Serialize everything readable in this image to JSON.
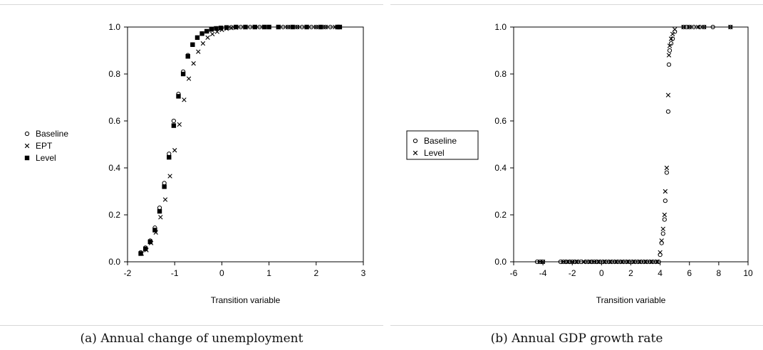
{
  "chart_data": [
    {
      "type": "scatter",
      "caption": "(a) Annual change of unemployment",
      "xlabel": "Transition variable",
      "ylabel": "",
      "xlim": [
        -2,
        3
      ],
      "ylim": [
        0,
        1
      ],
      "xticks": [
        "-2",
        "-1",
        "0",
        "1",
        "2",
        "3"
      ],
      "yticks": [
        "0.0",
        "0.2",
        "0.4",
        "0.6",
        "0.8",
        "1.0"
      ],
      "legend_position": "left",
      "series": [
        {
          "name": "Baseline",
          "marker": "circle",
          "x": [
            -1.72,
            -1.62,
            -1.52,
            -1.42,
            -1.32,
            -1.22,
            -1.12,
            -1.02,
            -0.92,
            -0.82,
            -0.72,
            -0.62,
            -0.52,
            -0.42,
            -0.32,
            -0.22,
            -0.12,
            -0.02,
            0.1,
            0.2,
            0.3,
            0.4,
            0.5,
            0.6,
            0.7,
            0.8,
            0.9,
            1.0,
            1.2,
            1.3,
            1.4,
            1.5,
            1.6,
            1.7,
            1.8,
            1.9,
            2.0,
            2.1,
            2.2,
            2.3,
            2.45,
            2.5
          ],
          "y": [
            0.04,
            0.06,
            0.09,
            0.145,
            0.23,
            0.335,
            0.46,
            0.6,
            0.715,
            0.81,
            0.88,
            0.925,
            0.955,
            0.972,
            0.982,
            0.99,
            0.994,
            0.996,
            0.998,
            0.999,
            1.0,
            1.0,
            1.0,
            1.0,
            1.0,
            1.0,
            1.0,
            1.0,
            1.0,
            1.0,
            1.0,
            1.0,
            1.0,
            1.0,
            1.0,
            1.0,
            1.0,
            1.0,
            1.0,
            1.0,
            1.0,
            1.0
          ]
        },
        {
          "name": "EPT",
          "marker": "cross",
          "x": [
            -1.7,
            -1.6,
            -1.5,
            -1.4,
            -1.3,
            -1.2,
            -1.1,
            -1.0,
            -0.9,
            -0.8,
            -0.7,
            -0.6,
            -0.5,
            -0.4,
            -0.3,
            -0.2,
            -0.1,
            0.0,
            0.1,
            0.2,
            0.3,
            0.5,
            0.7,
            0.9,
            1.0,
            1.2,
            1.4,
            1.6,
            1.8,
            2.0,
            2.2,
            2.4,
            2.5
          ],
          "y": [
            0.035,
            0.05,
            0.08,
            0.125,
            0.19,
            0.265,
            0.365,
            0.475,
            0.585,
            0.69,
            0.78,
            0.845,
            0.895,
            0.93,
            0.955,
            0.97,
            0.98,
            0.988,
            0.993,
            0.996,
            0.998,
            0.999,
            1.0,
            1.0,
            1.0,
            1.0,
            1.0,
            1.0,
            1.0,
            1.0,
            1.0,
            1.0,
            1.0
          ]
        },
        {
          "name": "Level",
          "marker": "square",
          "x": [
            -1.72,
            -1.62,
            -1.52,
            -1.42,
            -1.32,
            -1.22,
            -1.12,
            -1.02,
            -0.92,
            -0.82,
            -0.72,
            -0.62,
            -0.52,
            -0.42,
            -0.32,
            -0.22,
            -0.12,
            -0.02,
            0.1,
            0.3,
            0.5,
            0.7,
            0.9,
            1.0,
            1.2,
            1.5,
            1.8,
            2.1,
            2.45,
            2.5
          ],
          "y": [
            0.035,
            0.055,
            0.085,
            0.135,
            0.215,
            0.32,
            0.445,
            0.58,
            0.705,
            0.8,
            0.875,
            0.925,
            0.955,
            0.972,
            0.982,
            0.99,
            0.994,
            0.996,
            0.998,
            1.0,
            1.0,
            1.0,
            1.0,
            1.0,
            1.0,
            1.0,
            1.0,
            1.0,
            1.0,
            1.0
          ]
        }
      ]
    },
    {
      "type": "scatter",
      "caption": "(b) Annual GDP growth rate",
      "xlabel": "Transition variable",
      "ylabel": "",
      "xlim": [
        -6,
        10
      ],
      "ylim": [
        0,
        1
      ],
      "xticks": [
        "-6",
        "-4",
        "-2",
        "0",
        "2",
        "4",
        "6",
        "8",
        "10"
      ],
      "yticks": [
        "0.0",
        "0.2",
        "0.4",
        "0.6",
        "0.8",
        "1.0"
      ],
      "legend_position": "left",
      "series": [
        {
          "name": "Baseline",
          "marker": "circle",
          "x": [
            -4.4,
            -4.2,
            -4.0,
            -2.8,
            -2.6,
            -2.4,
            -2.2,
            -2.0,
            -1.8,
            -1.6,
            -1.4,
            -1.1,
            -0.9,
            -0.7,
            -0.5,
            -0.3,
            -0.1,
            0.1,
            0.3,
            0.5,
            0.7,
            0.9,
            1.1,
            1.3,
            1.5,
            1.7,
            1.9,
            2.1,
            2.3,
            2.5,
            2.7,
            2.9,
            3.1,
            3.3,
            3.5,
            3.7,
            3.9,
            4.0,
            4.1,
            4.2,
            4.3,
            4.35,
            4.45,
            4.55,
            4.6,
            4.65,
            4.75,
            4.85,
            5.0,
            5.6,
            5.8,
            6.0,
            6.3,
            6.7,
            7.0,
            7.6,
            8.8
          ],
          "y": [
            0.0,
            0.0,
            0.0,
            0.0,
            0.0,
            0.0,
            0.0,
            0.0,
            0.0,
            0.0,
            0.0,
            0.0,
            0.0,
            0.0,
            0.0,
            0.0,
            0.0,
            0.0,
            0.0,
            0.0,
            0.0,
            0.0,
            0.0,
            0.0,
            0.0,
            0.0,
            0.0,
            0.0,
            0.0,
            0.0,
            0.0,
            0.0,
            0.0,
            0.0,
            0.0,
            0.0,
            0.0,
            0.03,
            0.08,
            0.12,
            0.18,
            0.26,
            0.38,
            0.64,
            0.84,
            0.9,
            0.93,
            0.95,
            0.98,
            1.0,
            1.0,
            1.0,
            1.0,
            1.0,
            1.0,
            1.0,
            1.0
          ]
        },
        {
          "name": "Level",
          "marker": "cross",
          "x": [
            -4.2,
            -4.0,
            -2.6,
            -2.3,
            -2.0,
            -1.7,
            -1.2,
            -0.8,
            -0.5,
            -0.2,
            0.2,
            0.6,
            1.0,
            1.4,
            1.8,
            2.2,
            2.6,
            3.0,
            3.4,
            3.8,
            4.0,
            4.1,
            4.2,
            4.3,
            4.35,
            4.45,
            4.55,
            4.6,
            4.65,
            4.75,
            4.85,
            5.0,
            5.6,
            6.0,
            6.6,
            7.0,
            8.8
          ],
          "y": [
            0.0,
            0.0,
            0.0,
            0.0,
            0.0,
            0.0,
            0.0,
            0.0,
            0.0,
            0.0,
            0.0,
            0.0,
            0.0,
            0.0,
            0.0,
            0.0,
            0.0,
            0.0,
            0.0,
            0.0,
            0.04,
            0.09,
            0.14,
            0.2,
            0.3,
            0.4,
            0.71,
            0.88,
            0.92,
            0.95,
            0.97,
            0.99,
            1.0,
            1.0,
            1.0,
            1.0,
            1.0
          ]
        }
      ]
    }
  ]
}
